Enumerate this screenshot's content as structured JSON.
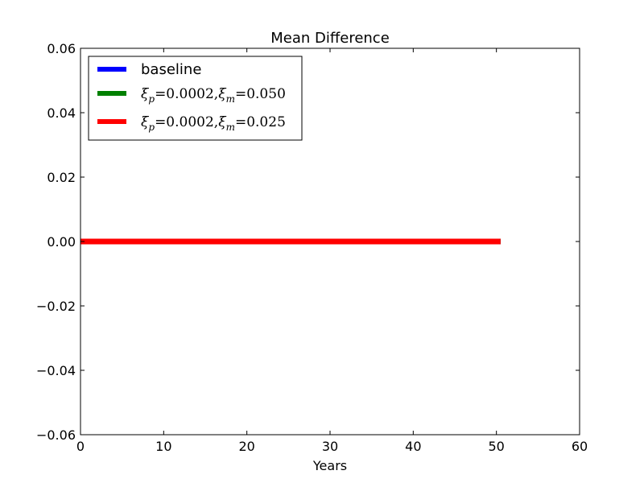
{
  "chart_data": {
    "type": "line",
    "title": "Mean Difference",
    "xlabel": "Years",
    "ylabel": "",
    "xlim": [
      0,
      60
    ],
    "ylim": [
      -0.06,
      0.06
    ],
    "x_ticks": [
      0,
      10,
      20,
      30,
      40,
      50,
      60
    ],
    "x_tick_labels": [
      "0",
      "10",
      "20",
      "30",
      "40",
      "50",
      "60"
    ],
    "y_ticks": [
      0.06,
      0.04,
      0.02,
      0.0,
      -0.02,
      -0.04,
      -0.06
    ],
    "y_tick_labels": [
      "0.06",
      "0.04",
      "0.02",
      "0.00",
      "−0.02",
      "−0.04",
      "−0.06"
    ],
    "grid": false,
    "legend_position": "top-left",
    "series": [
      {
        "name": "baseline",
        "label_html": "baseline",
        "color": "#0000ff",
        "x": [
          0,
          50.5
        ],
        "y": [
          0,
          0
        ]
      },
      {
        "name": "ξ_p = 0.0002, ξ_m = 0.050",
        "color": "#008000",
        "x": [
          0,
          50.5
        ],
        "y": [
          0,
          0
        ]
      },
      {
        "name": "ξ_p = 0.0002, ξ_m = 0.025",
        "color": "#ff0000",
        "x": [
          0,
          50.5
        ],
        "y": [
          0,
          0
        ]
      }
    ]
  }
}
